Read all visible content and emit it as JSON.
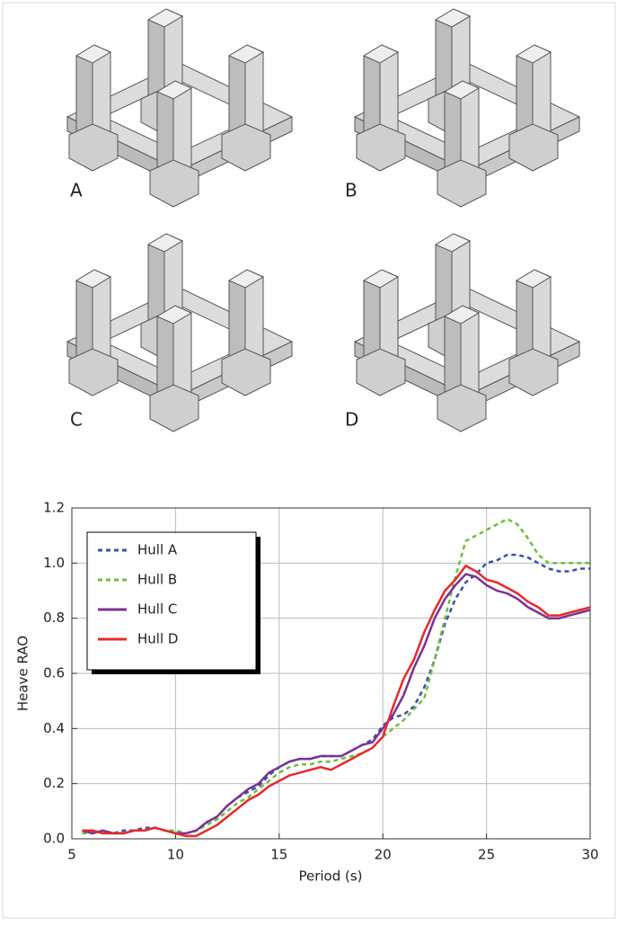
{
  "panels": [
    "A",
    "B",
    "C",
    "D"
  ],
  "chart_data": {
    "type": "line",
    "xlabel": "Period (s)",
    "ylabel": "Heave RAO",
    "x": [
      5.5,
      6,
      6.5,
      7,
      7.5,
      8,
      8.5,
      9,
      9.5,
      10,
      10.5,
      11,
      11.5,
      12,
      12.5,
      13,
      13.5,
      14,
      14.5,
      15,
      15.5,
      16,
      16.5,
      17,
      17.5,
      18,
      18.5,
      19,
      19.5,
      20,
      20.5,
      21,
      21.5,
      22,
      22.5,
      23,
      23.5,
      24,
      24.5,
      25,
      25.5,
      26,
      26.5,
      27,
      27.5,
      28,
      28.5,
      29,
      29.5,
      30
    ],
    "series": [
      {
        "name": "Hull A",
        "color": "#3a4fa8",
        "style": "dashed",
        "values": [
          0.02,
          0.03,
          0.02,
          0.02,
          0.03,
          0.03,
          0.04,
          0.04,
          0.03,
          0.03,
          0.02,
          0.03,
          0.06,
          0.08,
          0.12,
          0.15,
          0.17,
          0.19,
          0.23,
          0.26,
          0.28,
          0.29,
          0.29,
          0.3,
          0.3,
          0.3,
          0.32,
          0.34,
          0.36,
          0.41,
          0.44,
          0.45,
          0.48,
          0.55,
          0.65,
          0.78,
          0.87,
          0.93,
          0.96,
          1.0,
          1.01,
          1.03,
          1.03,
          1.02,
          1.0,
          0.98,
          0.97,
          0.97,
          0.98,
          0.98
        ]
      },
      {
        "name": "Hull B",
        "color": "#6cbf3c",
        "style": "dashed",
        "values": [
          0.02,
          0.02,
          0.03,
          0.02,
          0.02,
          0.03,
          0.03,
          0.04,
          0.03,
          0.03,
          0.02,
          0.03,
          0.05,
          0.07,
          0.1,
          0.13,
          0.15,
          0.18,
          0.21,
          0.24,
          0.26,
          0.27,
          0.27,
          0.28,
          0.28,
          0.29,
          0.3,
          0.31,
          0.33,
          0.37,
          0.4,
          0.43,
          0.47,
          0.51,
          0.65,
          0.8,
          0.95,
          1.08,
          1.1,
          1.12,
          1.14,
          1.16,
          1.14,
          1.09,
          1.03,
          1.0,
          1.0,
          1.0,
          1.0,
          1.0
        ]
      },
      {
        "name": "Hull C",
        "color": "#7b3294",
        "style": "solid",
        "values": [
          0.03,
          0.02,
          0.03,
          0.02,
          0.02,
          0.03,
          0.03,
          0.04,
          0.03,
          0.02,
          0.02,
          0.03,
          0.06,
          0.08,
          0.12,
          0.15,
          0.18,
          0.2,
          0.24,
          0.26,
          0.28,
          0.29,
          0.29,
          0.3,
          0.3,
          0.3,
          0.32,
          0.34,
          0.35,
          0.4,
          0.45,
          0.52,
          0.62,
          0.7,
          0.8,
          0.87,
          0.92,
          0.96,
          0.95,
          0.92,
          0.9,
          0.89,
          0.87,
          0.84,
          0.82,
          0.8,
          0.8,
          0.81,
          0.82,
          0.83
        ]
      },
      {
        "name": "Hull D",
        "color": "#e8282b",
        "style": "solid",
        "values": [
          0.03,
          0.03,
          0.02,
          0.02,
          0.02,
          0.03,
          0.03,
          0.04,
          0.03,
          0.02,
          0.01,
          0.01,
          0.03,
          0.05,
          0.08,
          0.11,
          0.14,
          0.16,
          0.19,
          0.21,
          0.23,
          0.24,
          0.25,
          0.26,
          0.25,
          0.27,
          0.29,
          0.31,
          0.33,
          0.37,
          0.48,
          0.58,
          0.65,
          0.75,
          0.83,
          0.9,
          0.94,
          0.99,
          0.97,
          0.94,
          0.93,
          0.91,
          0.89,
          0.86,
          0.84,
          0.81,
          0.81,
          0.82,
          0.83,
          0.84
        ]
      }
    ],
    "xlim": [
      5,
      30
    ],
    "xticks": [
      5,
      10,
      15,
      20,
      25,
      30
    ],
    "ylim": [
      0,
      1.2
    ],
    "yticks": [
      {
        "value": 0,
        "label": "0.0"
      },
      0.2,
      0.4,
      0.6,
      0.8,
      {
        "value": 1,
        "label": "1.0"
      },
      1.2
    ],
    "grid": true,
    "legend": "upper left"
  }
}
